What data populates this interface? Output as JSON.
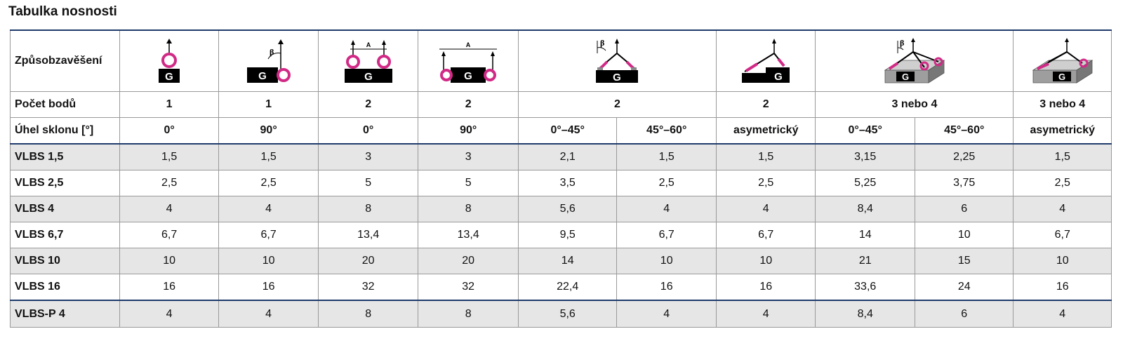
{
  "title": "Tabulka nosnosti",
  "header": {
    "method_label": "Způsobzavěšení",
    "points_label": "Počet bodů",
    "angle_label": "Úhel sklonu [°]"
  },
  "points": [
    "1",
    "1",
    "2",
    "2",
    "2",
    "2",
    "3 nebo 4",
    "3 nebo 4"
  ],
  "angles": [
    "0°",
    "90°",
    "0°",
    "90°",
    "0°–45°",
    "45°–60°",
    "asymetrický",
    "0°–45°",
    "45°–60°",
    "asymetrický"
  ],
  "icons": {
    "block_letter": "G",
    "beta": "β",
    "spread": "A"
  },
  "rows": [
    {
      "name": "VLBS 1,5",
      "values": [
        "1,5",
        "1,5",
        "3",
        "3",
        "2,1",
        "1,5",
        "1,5",
        "3,15",
        "2,25",
        "1,5"
      ]
    },
    {
      "name": "VLBS 2,5",
      "values": [
        "2,5",
        "2,5",
        "5",
        "5",
        "3,5",
        "2,5",
        "2,5",
        "5,25",
        "3,75",
        "2,5"
      ]
    },
    {
      "name": "VLBS 4",
      "values": [
        "4",
        "4",
        "8",
        "8",
        "5,6",
        "4",
        "4",
        "8,4",
        "6",
        "4"
      ]
    },
    {
      "name": "VLBS 6,7",
      "values": [
        "6,7",
        "6,7",
        "13,4",
        "13,4",
        "9,5",
        "6,7",
        "6,7",
        "14",
        "10",
        "6,7"
      ]
    },
    {
      "name": "VLBS 10",
      "values": [
        "10",
        "10",
        "20",
        "20",
        "14",
        "10",
        "10",
        "21",
        "15",
        "10"
      ]
    },
    {
      "name": "VLBS 16",
      "values": [
        "16",
        "16",
        "32",
        "32",
        "22,4",
        "16",
        "16",
        "33,6",
        "24",
        "16"
      ]
    },
    {
      "name": "VLBS-P 4",
      "values": [
        "4",
        "4",
        "8",
        "8",
        "5,6",
        "4",
        "4",
        "8,4",
        "6",
        "4"
      ]
    }
  ],
  "colors": {
    "header_rule": "#1f3a6b",
    "row_shade": "#e6e6e6",
    "ring": "#d12a86",
    "block": "#000000"
  }
}
